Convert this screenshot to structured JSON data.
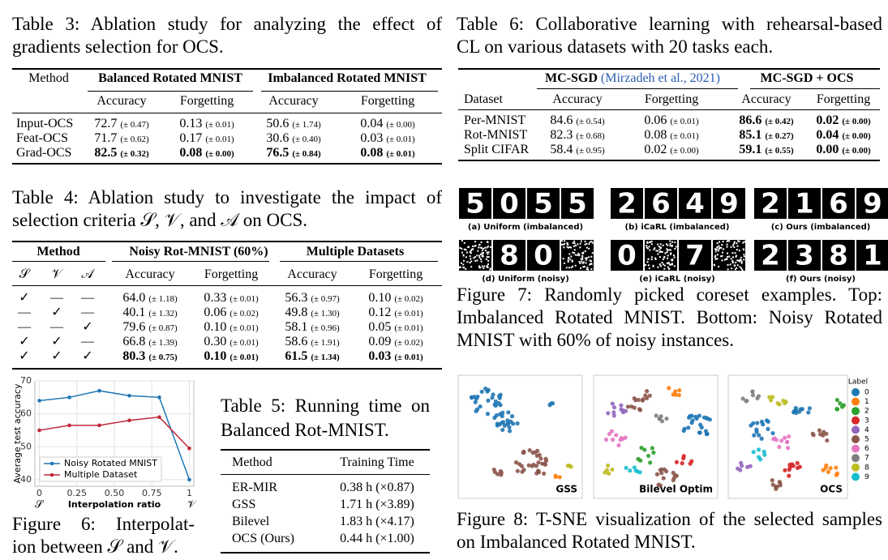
{
  "table3": {
    "caption_lines": [
      "Table 3: Ablation study for analyzing the effect of",
      "gradients selection for OCS."
    ],
    "header": {
      "method": "Method",
      "groups": [
        "Balanced Rotated MNIST",
        "Imbalanced Rotated MNIST"
      ],
      "metrics": [
        "Accuracy",
        "Forgetting",
        "Accuracy",
        "Forgetting"
      ]
    },
    "rows": [
      {
        "method": "Input-OCS",
        "cells": [
          [
            "72.7",
            "(± 0.47)"
          ],
          [
            "0.13",
            "(± 0.01)"
          ],
          [
            "50.6",
            "(± 1.74)"
          ],
          [
            "0.04",
            "(± 0.00)"
          ]
        ]
      },
      {
        "method": "Feat-OCS",
        "cells": [
          [
            "71.7",
            "(± 0.62)"
          ],
          [
            "0.17",
            "(± 0.01)"
          ],
          [
            "30.6",
            "(± 0.40)"
          ],
          [
            "0.03",
            "(± 0.01)"
          ]
        ]
      },
      {
        "method": "Grad-OCS",
        "cells": [
          [
            "82.5",
            "(± 0.32)"
          ],
          [
            "0.08",
            "(± 0.00)"
          ],
          [
            "76.5",
            "(± 0.84)"
          ],
          [
            "0.08",
            "(± 0.01)"
          ]
        ]
      }
    ]
  },
  "table4": {
    "caption_lines": [
      "Table 4: Ablation study to investigate the impact of",
      "selection criteria 𝒮, 𝒱, and 𝒜 on OCS."
    ],
    "header": {
      "method": "Method",
      "criteria": [
        "𝒮",
        "𝒱",
        "𝒜"
      ],
      "groups": [
        "Noisy Rot-MNIST (60%)",
        "Multiple Datasets"
      ],
      "metrics": [
        "Accuracy",
        "Forgetting",
        "Accuracy",
        "Forgetting"
      ]
    },
    "rows": [
      {
        "criteria": [
          "✓",
          "—",
          "—"
        ],
        "cells": [
          [
            "64.0",
            "(± 1.18)"
          ],
          [
            "0.33",
            "(± 0.01)"
          ],
          [
            "56.3",
            "(± 0.97)"
          ],
          [
            "0.10",
            "(± 0.02)"
          ]
        ]
      },
      {
        "criteria": [
          "—",
          "✓",
          "—"
        ],
        "cells": [
          [
            "40.1",
            "(± 1.32)"
          ],
          [
            "0.06",
            "(± 0.02)"
          ],
          [
            "49.8",
            "(± 1.30)"
          ],
          [
            "0.12",
            "(± 0.01)"
          ]
        ]
      },
      {
        "criteria": [
          "—",
          "—",
          "✓"
        ],
        "cells": [
          [
            "79.6",
            "(± 0.87)"
          ],
          [
            "0.10",
            "(± 0.01)"
          ],
          [
            "58.1",
            "(± 0.96)"
          ],
          [
            "0.05",
            "(± 0.01)"
          ]
        ]
      },
      {
        "criteria": [
          "✓",
          "✓",
          "—"
        ],
        "cells": [
          [
            "66.8",
            "(± 1.39)"
          ],
          [
            "0.30",
            "(± 0.01)"
          ],
          [
            "58.6",
            "(± 1.91)"
          ],
          [
            "0.09",
            "(± 0.02)"
          ]
        ]
      },
      {
        "criteria": [
          "✓",
          "✓",
          "✓"
        ],
        "cells": [
          [
            "80.3",
            "(± 0.75)"
          ],
          [
            "0.10",
            "(± 0.01)"
          ],
          [
            "61.5",
            "(± 1.34)"
          ],
          [
            "0.03",
            "(± 0.01)"
          ]
        ]
      }
    ]
  },
  "table5": {
    "caption_lines": [
      "Table 5: Running time on",
      "Balanced Rot-MNIST."
    ],
    "header": {
      "method": "Method",
      "time": "Training Time"
    },
    "rows": [
      {
        "method": "ER-MIR",
        "time": "0.38 h (×0.87)"
      },
      {
        "method": "GSS",
        "time": "1.71 h (×3.89)"
      },
      {
        "method": "Bilevel",
        "time": "1.83 h (×4.17)"
      },
      {
        "method": "OCS (Ours)",
        "time": "0.44 h (×1.00)"
      }
    ]
  },
  "table6": {
    "caption_lines": [
      "Table 6: Collaborative learning with rehearsal-based",
      "CL on various datasets with 20 tasks each."
    ],
    "header": {
      "groups": [
        {
          "name": "MC-SGD",
          "citation": "(Mirzadeh et al., 2021)"
        },
        {
          "name": "MC-SGD + OCS"
        }
      ],
      "dataset": "Dataset",
      "metrics": [
        "Accuracy",
        "Forgetting",
        "Accuracy",
        "Forgetting"
      ]
    },
    "rows": [
      {
        "dataset": "Per-MNIST",
        "cells": [
          [
            "84.6",
            "(± 0.54)"
          ],
          [
            "0.06",
            "(± 0.01)"
          ],
          [
            "86.6",
            "(± 0.42)"
          ],
          [
            "0.02",
            "(± 0.00)"
          ]
        ]
      },
      {
        "dataset": "Rot-MNIST",
        "cells": [
          [
            "82.3",
            "(± 0.68)"
          ],
          [
            "0.08",
            "(± 0.01)"
          ],
          [
            "85.1",
            "(± 0.27)"
          ],
          [
            "0.04",
            "(± 0.00)"
          ]
        ]
      },
      {
        "dataset": "Split CIFAR",
        "cells": [
          [
            "58.4",
            "(± 0.95)"
          ],
          [
            "0.02",
            "(± 0.00)"
          ],
          [
            "59.1",
            "(± 0.55)"
          ],
          [
            "0.00",
            "(± 0.00)"
          ]
        ]
      }
    ]
  },
  "figure6": {
    "caption_lines": [
      "Figure 6: Interpolat-",
      "ion between 𝒮 and 𝒱."
    ]
  },
  "chart_data": {
    "type": "line",
    "ylabel": "Average test accuracy",
    "xlabel": "Interpolation ratio",
    "x_end_labels": [
      "𝒮",
      "𝒱"
    ],
    "x": [
      0,
      0.2,
      0.4,
      0.6,
      0.8,
      1
    ],
    "series": [
      {
        "name": "Noisy Rotated MNIST",
        "color": "#1f77b4",
        "values": [
          64,
          65,
          67,
          65.5,
          65,
          40
        ]
      },
      {
        "name": "Multiple Dataset",
        "color": "#c0283a",
        "values": [
          55,
          56.5,
          56.5,
          58,
          59,
          49.5
        ]
      }
    ],
    "xlim": [
      -0.03,
      1.03
    ],
    "xticks": [
      0,
      0.25,
      {
        "value": 0.5,
        "label": "0.50"
      },
      0.75,
      1
    ],
    "ylim": [
      38,
      70
    ],
    "yticks": [
      40,
      50,
      60,
      70
    ],
    "grid": true,
    "legend": "lower left"
  },
  "figure7": {
    "caption_lines": [
      "Figure 7: Randomly picked coreset examples. Top:",
      "Imbalanced Rotated MNIST. Bottom: Noisy Rotated",
      "MNIST with 60% of noisy instances."
    ],
    "panels": [
      {
        "label": "(a) Uniform (imbalanced)",
        "digits": [
          "5",
          "0",
          "5",
          "5"
        ]
      },
      {
        "label": "(b) iCaRL (imbalanced)",
        "digits": [
          "2",
          "6",
          "4",
          "9"
        ]
      },
      {
        "label": "(c) Ours (imbalanced)",
        "digits": [
          "2",
          "1",
          "6",
          "9"
        ]
      },
      {
        "label": "(d) Uniform (noisy)",
        "digits": [
          null,
          "8",
          "0",
          null
        ]
      },
      {
        "label": "(e) iCaRL (noisy)",
        "digits": [
          "0",
          null,
          "7",
          null
        ]
      },
      {
        "label": "(f) Ours (noisy)",
        "digits": [
          "2",
          "3",
          "8",
          "1"
        ]
      }
    ]
  },
  "figure8": {
    "caption_lines": [
      "Figure 8: T-SNE visualization of the selected samples",
      "on Imbalanced Rotated MNIST."
    ],
    "panels": [
      "GSS",
      "Bilevel Optim",
      "OCS"
    ],
    "legend": {
      "title": "Label",
      "labels": [
        "0",
        "1",
        "2",
        "3",
        "4",
        "5",
        "6",
        "7",
        "8",
        "9"
      ],
      "colors": [
        "#1f77b4",
        "#ff7f0e",
        "#2ca02c",
        "#d62728",
        "#9467bd",
        "#8c564b",
        "#e377c2",
        "#7f7f7f",
        "#bcbd22",
        "#17becf"
      ]
    }
  }
}
